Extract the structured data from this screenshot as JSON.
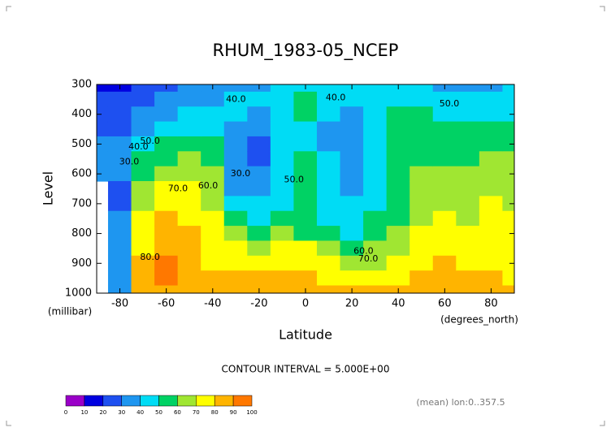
{
  "chart_data": {
    "type": "contour",
    "title": "RHUM_1983-05_NCEP",
    "xlabel": "Latitude",
    "ylabel": "Level",
    "x_units": "(degrees_north)",
    "y_units": "(millibar)",
    "annotation": "CONTOUR INTERVAL = 5.000E+00",
    "footnote": "(mean) lon:0..357.5",
    "xlim": [
      -90,
      90
    ],
    "ylim": [
      1000,
      300
    ],
    "xticks": [
      -80,
      -60,
      -40,
      -20,
      0,
      20,
      40,
      60,
      80
    ],
    "yticks": [
      300,
      400,
      500,
      600,
      700,
      800,
      900,
      1000
    ],
    "x": [
      -90,
      -80,
      -70,
      -60,
      -50,
      -40,
      -30,
      -20,
      -10,
      0,
      10,
      20,
      30,
      40,
      50,
      60,
      70,
      80,
      90
    ],
    "levels": [
      300,
      350,
      400,
      450,
      500,
      550,
      600,
      650,
      700,
      750,
      800,
      850,
      900,
      950,
      1000
    ],
    "z": [
      [
        15,
        20,
        25,
        28,
        30,
        30,
        32,
        null,
        null,
        null,
        null,
        null,
        null,
        null,
        null
      ],
      [
        15,
        20,
        25,
        28,
        30,
        30,
        30,
        28,
        28,
        30,
        30,
        30,
        35,
        35,
        35
      ],
      [
        20,
        25,
        30,
        35,
        45,
        50,
        55,
        60,
        65,
        70,
        70,
        75,
        80,
        80,
        80
      ],
      [
        25,
        30,
        35,
        40,
        50,
        55,
        65,
        70,
        75,
        80,
        85,
        85,
        90,
        90,
        80
      ],
      [
        30,
        35,
        40,
        45,
        55,
        60,
        65,
        70,
        70,
        75,
        80,
        80,
        85,
        85,
        80
      ],
      [
        30,
        35,
        40,
        45,
        50,
        55,
        60,
        60,
        65,
        70,
        70,
        75,
        75,
        80,
        80
      ],
      [
        35,
        40,
        40,
        35,
        30,
        30,
        30,
        35,
        40,
        50,
        60,
        70,
        75,
        80,
        85
      ],
      [
        35,
        40,
        35,
        30,
        28,
        28,
        30,
        35,
        40,
        45,
        55,
        65,
        75,
        80,
        85
      ],
      [
        40,
        45,
        45,
        40,
        40,
        45,
        45,
        45,
        45,
        50,
        60,
        70,
        75,
        80,
        80
      ],
      [
        45,
        50,
        50,
        45,
        45,
        50,
        50,
        50,
        50,
        50,
        55,
        70,
        75,
        80,
        85
      ],
      [
        45,
        45,
        40,
        35,
        35,
        40,
        40,
        40,
        45,
        45,
        50,
        60,
        70,
        75,
        80
      ],
      [
        40,
        40,
        35,
        30,
        30,
        30,
        35,
        35,
        40,
        45,
        45,
        55,
        65,
        70,
        80
      ],
      [
        40,
        45,
        45,
        40,
        40,
        40,
        45,
        45,
        45,
        50,
        55,
        60,
        65,
        75,
        80
      ],
      [
        45,
        45,
        50,
        50,
        50,
        50,
        50,
        55,
        55,
        55,
        60,
        65,
        70,
        75,
        80
      ],
      [
        40,
        45,
        50,
        55,
        55,
        55,
        60,
        60,
        65,
        65,
        70,
        75,
        75,
        80,
        85
      ],
      [
        35,
        40,
        45,
        55,
        55,
        55,
        60,
        60,
        65,
        70,
        75,
        75,
        80,
        85,
        85
      ],
      [
        30,
        40,
        45,
        50,
        55,
        55,
        60,
        60,
        65,
        65,
        70,
        70,
        75,
        80,
        85
      ],
      [
        35,
        40,
        45,
        50,
        55,
        60,
        65,
        65,
        70,
        70,
        70,
        75,
        75,
        80,
        85
      ],
      [
        40,
        40,
        45,
        50,
        55,
        60,
        60,
        65,
        65,
        70,
        70,
        70,
        75,
        75,
        80
      ]
    ],
    "colorbar": {
      "bounds": [
        0,
        10,
        20,
        30,
        40,
        50,
        60,
        70,
        80,
        90,
        100
      ],
      "colors": [
        "#9a00c8",
        "#0000e0",
        "#1e50f0",
        "#1e96f0",
        "#00dcf5",
        "#00d264",
        "#a0e632",
        "#ffff00",
        "#ffb400",
        "#ff7800",
        "#ff1400"
      ]
    },
    "contour_labels": [
      {
        "value": 40,
        "label": "40.0",
        "lat": -30,
        "level": 350
      },
      {
        "value": 40,
        "label": "40.0",
        "lat": 13,
        "level": 345
      },
      {
        "value": 50,
        "label": "50.0",
        "lat": 62,
        "level": 365
      },
      {
        "value": 30,
        "label": "30.0",
        "lat": -76,
        "level": 560
      },
      {
        "value": 40,
        "label": "40.0",
        "lat": -72,
        "level": 510
      },
      {
        "value": 50,
        "label": "50.0",
        "lat": -67,
        "level": 490
      },
      {
        "value": 30,
        "label": "30.0",
        "lat": -28,
        "level": 600
      },
      {
        "value": 70,
        "label": "70.0",
        "lat": -55,
        "level": 650
      },
      {
        "value": 60,
        "label": "60.0",
        "lat": -42,
        "level": 640
      },
      {
        "value": 50,
        "label": "50.0",
        "lat": -5,
        "level": 620
      },
      {
        "value": 80,
        "label": "80.0",
        "lat": -67,
        "level": 880
      },
      {
        "value": 60,
        "label": "60.0",
        "lat": 25,
        "level": 860
      },
      {
        "value": 70,
        "label": "70.0",
        "lat": 27,
        "level": 885
      }
    ]
  }
}
